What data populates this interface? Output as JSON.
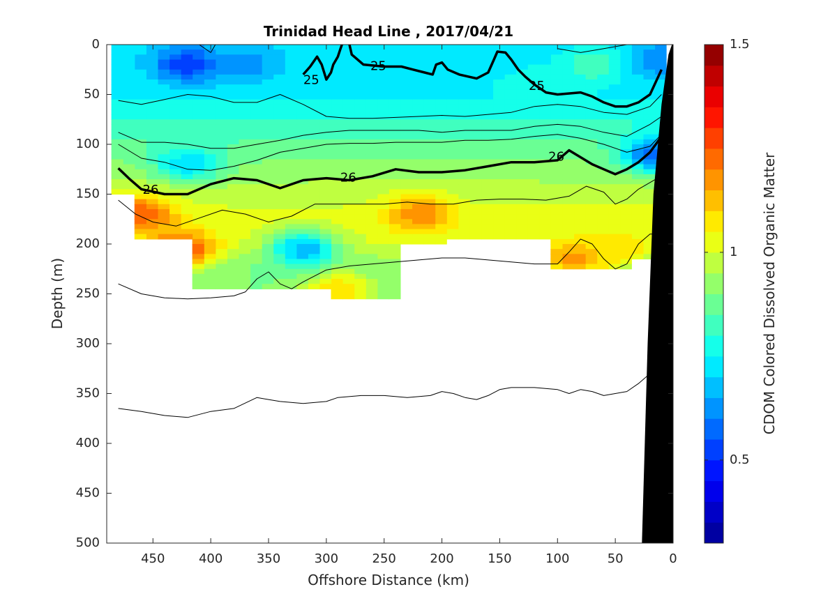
{
  "chart_data": {
    "type": "heatmap",
    "title": "Trinidad Head Line , 2017/04/21",
    "xlabel": "Offshore Distance (km)",
    "ylabel": "Depth (m)",
    "colorbar_label": "CDOM Colored Dissolved Organic Matter",
    "xlim": [
      490,
      0
    ],
    "x_reversed": true,
    "ylim": [
      0,
      500
    ],
    "y_reversed": true,
    "xticks": [
      450,
      400,
      350,
      300,
      250,
      200,
      150,
      100,
      50,
      0
    ],
    "yticks": [
      0,
      50,
      100,
      150,
      200,
      250,
      300,
      350,
      400,
      450,
      500
    ],
    "colorbar_range": [
      0.3,
      1.5
    ],
    "colorbar_ticks": [
      0.5,
      1,
      1.5
    ],
    "colorbar_tick_labels": [
      "0.5",
      "1",
      "1.5"
    ],
    "colormap": "jet",
    "colormap_stops": [
      "#00008f",
      "#0000ff",
      "#007fff",
      "#00ffff",
      "#7fff7f",
      "#ffff00",
      "#ff7f00",
      "#ff0000",
      "#800000"
    ],
    "colorbar_levels": 24,
    "data_extent": {
      "x_min": 6,
      "x_max": 480,
      "depth_min": 0,
      "depth_max": 260
    },
    "cdom_profile_by_depth": [
      {
        "depth": 0,
        "value": 0.72
      },
      {
        "depth": 25,
        "value": 0.72
      },
      {
        "depth": 50,
        "value": 0.74
      },
      {
        "depth": 75,
        "value": 0.8
      },
      {
        "depth": 100,
        "value": 0.86
      },
      {
        "depth": 125,
        "value": 0.92
      },
      {
        "depth": 150,
        "value": 0.98
      },
      {
        "depth": 175,
        "value": 1.02
      },
      {
        "depth": 200,
        "value": 1.0
      },
      {
        "depth": 225,
        "value": 0.9
      },
      {
        "depth": 250,
        "value": 0.9
      }
    ],
    "cdom_patches": [
      {
        "x": 420,
        "depth": 20,
        "value": 0.5
      },
      {
        "x": 370,
        "depth": 20,
        "value": 0.62
      },
      {
        "x": 420,
        "depth": 120,
        "value": 0.7
      },
      {
        "x": 120,
        "depth": 40,
        "value": 0.8
      },
      {
        "x": 70,
        "depth": 20,
        "value": 0.85
      },
      {
        "x": 425,
        "depth": 205,
        "value": 1.3
      },
      {
        "x": 460,
        "depth": 170,
        "value": 1.25
      },
      {
        "x": 220,
        "depth": 170,
        "value": 1.2
      },
      {
        "x": 290,
        "depth": 245,
        "value": 1.1
      },
      {
        "x": 320,
        "depth": 205,
        "value": 0.65
      },
      {
        "x": 85,
        "depth": 215,
        "value": 1.2
      },
      {
        "x": 50,
        "depth": 205,
        "value": 1.1
      },
      {
        "x": 10,
        "depth": 15,
        "value": 0.6
      },
      {
        "x": 15,
        "depth": 110,
        "value": 0.55
      }
    ],
    "contours": [
      {
        "label": "25",
        "bold": true,
        "points": [
          [
            320,
            30
          ],
          [
            314,
            22
          ],
          [
            308,
            12
          ],
          [
            304,
            20
          ],
          [
            300,
            35
          ],
          [
            296,
            28
          ],
          [
            294,
            20
          ],
          [
            290,
            12
          ],
          [
            288,
            5
          ],
          [
            285,
            -5
          ]
        ]
      },
      {
        "label": "25",
        "bold": true,
        "points": [
          [
            280,
            0
          ],
          [
            278,
            10
          ],
          [
            268,
            20
          ],
          [
            250,
            22
          ],
          [
            235,
            22
          ],
          [
            225,
            25
          ],
          [
            215,
            28
          ],
          [
            208,
            30
          ],
          [
            205,
            20
          ],
          [
            200,
            18
          ],
          [
            195,
            25
          ],
          [
            185,
            30
          ],
          [
            170,
            34
          ],
          [
            160,
            28
          ],
          [
            155,
            15
          ],
          [
            152,
            7
          ],
          [
            145,
            8
          ],
          [
            140,
            15
          ],
          [
            134,
            25
          ],
          [
            128,
            32
          ],
          [
            120,
            40
          ],
          [
            110,
            48
          ],
          [
            100,
            50
          ],
          [
            80,
            48
          ],
          [
            70,
            52
          ],
          [
            60,
            58
          ],
          [
            50,
            62
          ],
          [
            40,
            62
          ],
          [
            30,
            58
          ],
          [
            20,
            50
          ],
          [
            10,
            25
          ]
        ]
      },
      {
        "label": "",
        "bold": false,
        "points": [
          [
            410,
            0
          ],
          [
            400,
            8
          ],
          [
            396,
            0
          ]
        ]
      },
      {
        "label": "",
        "bold": false,
        "points": [
          [
            100,
            4
          ],
          [
            80,
            8
          ],
          [
            60,
            4
          ],
          [
            40,
            0
          ]
        ]
      },
      {
        "label": "",
        "bold": false,
        "points": [
          [
            480,
            56
          ],
          [
            460,
            60
          ],
          [
            440,
            55
          ],
          [
            420,
            50
          ],
          [
            400,
            52
          ],
          [
            380,
            58
          ],
          [
            360,
            58
          ],
          [
            340,
            50
          ],
          [
            320,
            60
          ],
          [
            300,
            72
          ],
          [
            280,
            74
          ],
          [
            260,
            74
          ],
          [
            240,
            73
          ],
          [
            220,
            72
          ],
          [
            200,
            71
          ],
          [
            180,
            72
          ],
          [
            160,
            70
          ],
          [
            140,
            68
          ],
          [
            120,
            62
          ],
          [
            100,
            60
          ],
          [
            80,
            62
          ],
          [
            60,
            68
          ],
          [
            40,
            70
          ],
          [
            20,
            62
          ],
          [
            10,
            50
          ]
        ]
      },
      {
        "label": "",
        "bold": false,
        "points": [
          [
            480,
            88
          ],
          [
            460,
            98
          ],
          [
            440,
            98
          ],
          [
            420,
            100
          ],
          [
            400,
            104
          ],
          [
            380,
            104
          ],
          [
            360,
            100
          ],
          [
            340,
            96
          ],
          [
            320,
            91
          ],
          [
            300,
            88
          ],
          [
            280,
            86
          ],
          [
            260,
            86
          ],
          [
            240,
            86
          ],
          [
            220,
            86
          ],
          [
            200,
            88
          ],
          [
            180,
            86
          ],
          [
            160,
            86
          ],
          [
            140,
            86
          ],
          [
            120,
            82
          ],
          [
            100,
            80
          ],
          [
            80,
            82
          ],
          [
            60,
            88
          ],
          [
            40,
            92
          ],
          [
            20,
            80
          ],
          [
            10,
            72
          ]
        ]
      },
      {
        "label": "",
        "bold": false,
        "points": [
          [
            480,
            100
          ],
          [
            460,
            114
          ],
          [
            440,
            118
          ],
          [
            420,
            125
          ],
          [
            400,
            126
          ],
          [
            380,
            122
          ],
          [
            360,
            116
          ],
          [
            340,
            108
          ],
          [
            320,
            104
          ],
          [
            300,
            100
          ],
          [
            280,
            99
          ],
          [
            260,
            99
          ],
          [
            240,
            98
          ],
          [
            220,
            98
          ],
          [
            200,
            98
          ],
          [
            180,
            96
          ],
          [
            160,
            96
          ],
          [
            140,
            95
          ],
          [
            120,
            92
          ],
          [
            100,
            90
          ],
          [
            80,
            94
          ],
          [
            60,
            100
          ],
          [
            40,
            108
          ],
          [
            20,
            102
          ],
          [
            10,
            90
          ]
        ]
      },
      {
        "label": "26",
        "bold": true,
        "points": [
          [
            480,
            124
          ],
          [
            470,
            135
          ],
          [
            460,
            145
          ],
          [
            440,
            150
          ],
          [
            420,
            150
          ],
          [
            400,
            140
          ],
          [
            380,
            134
          ],
          [
            360,
            136
          ],
          [
            340,
            144
          ],
          [
            320,
            136
          ],
          [
            300,
            134
          ],
          [
            280,
            136
          ],
          [
            260,
            132
          ],
          [
            240,
            125
          ],
          [
            220,
            128
          ],
          [
            200,
            128
          ],
          [
            180,
            126
          ],
          [
            160,
            122
          ],
          [
            140,
            118
          ],
          [
            120,
            118
          ],
          [
            100,
            116
          ],
          [
            90,
            106
          ],
          [
            70,
            120
          ],
          [
            60,
            125
          ],
          [
            50,
            130
          ],
          [
            40,
            125
          ],
          [
            30,
            118
          ],
          [
            20,
            108
          ],
          [
            10,
            92
          ]
        ]
      },
      {
        "label": "",
        "bold": false,
        "points": [
          [
            480,
            156
          ],
          [
            465,
            170
          ],
          [
            450,
            178
          ],
          [
            430,
            182
          ],
          [
            410,
            174
          ],
          [
            390,
            166
          ],
          [
            370,
            170
          ],
          [
            350,
            178
          ],
          [
            330,
            172
          ],
          [
            310,
            160
          ],
          [
            290,
            160
          ],
          [
            270,
            160
          ],
          [
            250,
            160
          ],
          [
            230,
            158
          ],
          [
            210,
            160
          ],
          [
            190,
            160
          ],
          [
            170,
            156
          ],
          [
            150,
            155
          ],
          [
            130,
            155
          ],
          [
            110,
            156
          ],
          [
            90,
            152
          ],
          [
            75,
            142
          ],
          [
            60,
            148
          ],
          [
            50,
            160
          ],
          [
            40,
            155
          ],
          [
            30,
            145
          ],
          [
            15,
            135
          ]
        ]
      },
      {
        "label": "",
        "bold": false,
        "points": [
          [
            480,
            240
          ],
          [
            460,
            250
          ],
          [
            440,
            254
          ],
          [
            420,
            255
          ],
          [
            400,
            254
          ],
          [
            380,
            252
          ],
          [
            370,
            248
          ],
          [
            360,
            235
          ],
          [
            350,
            228
          ],
          [
            340,
            240
          ],
          [
            330,
            245
          ],
          [
            320,
            238
          ],
          [
            300,
            226
          ],
          [
            280,
            222
          ],
          [
            260,
            220
          ],
          [
            240,
            218
          ],
          [
            220,
            216
          ],
          [
            200,
            214
          ],
          [
            180,
            214
          ],
          [
            160,
            216
          ],
          [
            140,
            218
          ],
          [
            120,
            220
          ],
          [
            100,
            220
          ],
          [
            90,
            208
          ],
          [
            80,
            195
          ],
          [
            70,
            200
          ],
          [
            60,
            215
          ],
          [
            50,
            225
          ],
          [
            40,
            220
          ],
          [
            30,
            200
          ],
          [
            20,
            190
          ],
          [
            15,
            190
          ]
        ]
      },
      {
        "label": "",
        "bold": false,
        "points": [
          [
            480,
            365
          ],
          [
            460,
            368
          ],
          [
            440,
            372
          ],
          [
            420,
            374
          ],
          [
            400,
            368
          ],
          [
            380,
            365
          ],
          [
            360,
            354
          ],
          [
            350,
            356
          ],
          [
            340,
            358
          ],
          [
            320,
            360
          ],
          [
            300,
            358
          ],
          [
            290,
            354
          ],
          [
            270,
            352
          ],
          [
            250,
            352
          ],
          [
            230,
            354
          ],
          [
            210,
            352
          ],
          [
            200,
            348
          ],
          [
            190,
            350
          ],
          [
            180,
            354
          ],
          [
            170,
            356
          ],
          [
            160,
            352
          ],
          [
            150,
            346
          ],
          [
            140,
            344
          ],
          [
            120,
            344
          ],
          [
            100,
            346
          ],
          [
            90,
            350
          ],
          [
            80,
            346
          ],
          [
            70,
            348
          ],
          [
            60,
            352
          ],
          [
            50,
            350
          ],
          [
            40,
            348
          ],
          [
            30,
            340
          ],
          [
            20,
            330
          ]
        ]
      }
    ],
    "contour_labels": [
      {
        "text": "25",
        "x": 313,
        "depth": 36
      },
      {
        "text": "25",
        "x": 255,
        "depth": 22
      },
      {
        "text": "25",
        "x": 118,
        "depth": 42
      },
      {
        "text": "26",
        "x": 452,
        "depth": 146
      },
      {
        "text": "26",
        "x": 281,
        "depth": 134
      },
      {
        "text": "26",
        "x": 101,
        "depth": 113
      }
    ],
    "bathymetry": {
      "color": "#000000",
      "points": [
        [
          0,
          0
        ],
        [
          0,
          500
        ],
        [
          27,
          500
        ],
        [
          22,
          300
        ],
        [
          17,
          150
        ],
        [
          10,
          60
        ],
        [
          4,
          10
        ],
        [
          1,
          0
        ]
      ]
    }
  }
}
